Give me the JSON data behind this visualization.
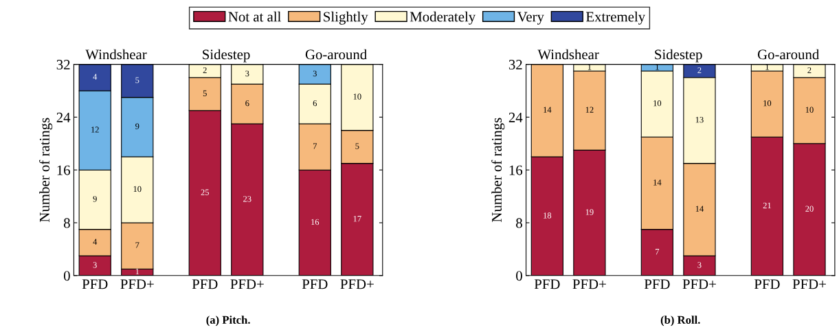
{
  "chart_data": [
    {
      "type": "bar",
      "stacked": true,
      "title": "(a) Pitch.",
      "ylabel": "Number of ratings",
      "ylim": [
        0,
        32
      ],
      "yticks": [
        0,
        8,
        16,
        24,
        32
      ],
      "grid": false,
      "legend": "top",
      "data_labels": true,
      "categories": [
        "PFD",
        "PFD+",
        "PFD",
        "PFD+",
        "PFD",
        "PFD+"
      ],
      "annotations": [
        "Windshear",
        "Sidestep",
        "Go-around"
      ],
      "series": [
        {
          "name": "Not at all",
          "color": "#ae1c3e",
          "values": [
            3,
            1,
            25,
            23,
            16,
            17
          ],
          "value_labels": [
            "3",
            "1",
            "25",
            "23",
            "16",
            "17"
          ]
        },
        {
          "name": "Slightly",
          "color": "#f6b97c",
          "values": [
            4,
            7,
            5,
            6,
            7,
            5
          ],
          "value_labels": [
            "4",
            "7",
            "5",
            "6",
            "7",
            "5"
          ]
        },
        {
          "name": "Moderately",
          "color": "#fff8d2",
          "values": [
            9,
            10,
            2,
            3,
            6,
            10
          ],
          "value_labels": [
            "9",
            "10",
            "2",
            "3",
            "6",
            "10"
          ]
        },
        {
          "name": "Very",
          "color": "#6fb4e6",
          "values": [
            12,
            9,
            null,
            null,
            3,
            null
          ],
          "value_labels": [
            "12",
            "9",
            null,
            null,
            "3",
            null
          ]
        },
        {
          "name": "Extremely",
          "color": "#31489e",
          "values": [
            4,
            5,
            null,
            null,
            null,
            null
          ],
          "value_labels": [
            "4",
            "5",
            null,
            null,
            null,
            null
          ]
        }
      ]
    },
    {
      "type": "bar",
      "stacked": true,
      "title": "(b) Roll.",
      "ylabel": "Number of ratings",
      "ylim": [
        0,
        32
      ],
      "yticks": [
        0,
        8,
        16,
        24,
        32
      ],
      "grid": false,
      "data_labels": true,
      "categories": [
        "PFD",
        "PFD+",
        "PFD",
        "PFD+",
        "PFD",
        "PFD+"
      ],
      "annotations": [
        "Windshear",
        "Sidestep",
        "Go-around"
      ],
      "series": [
        {
          "color": "#ae1c3e",
          "values": [
            18,
            19,
            7,
            3,
            21,
            20
          ],
          "value_labels": [
            "18",
            "19",
            "7",
            "3",
            "21",
            "20"
          ]
        },
        {
          "color": "#f6b97c",
          "values": [
            14,
            12,
            14,
            14,
            10,
            10
          ],
          "value_labels": [
            "14",
            "12",
            "14",
            "14",
            "10",
            "10"
          ]
        },
        {
          "color": "#fff8d2",
          "values": [
            null,
            1,
            10,
            13,
            1,
            2
          ],
          "value_labels": [
            null,
            "1",
            "10",
            "13",
            "1",
            "2"
          ]
        },
        {
          "color": "#6fb4e6",
          "values": [
            null,
            null,
            1,
            null,
            null,
            null
          ],
          "value_labels": [
            null,
            null,
            "1",
            null,
            null,
            null
          ]
        },
        {
          "color": "#31489e",
          "values": [
            null,
            null,
            null,
            2,
            null,
            null
          ],
          "value_labels": [
            null,
            null,
            null,
            "2",
            null,
            null
          ]
        }
      ]
    }
  ]
}
